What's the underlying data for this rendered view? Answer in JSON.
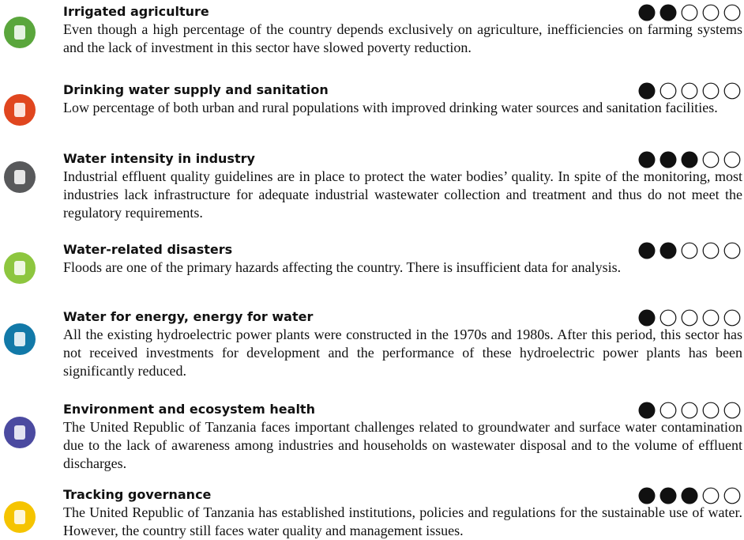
{
  "scale": 5,
  "items": [
    {
      "title": "Irrigated agriculture",
      "rating": 2,
      "text": "Even though a high percentage of the country depends exclusively on agriculture, inefficiencies on farming systems and the lack of investment in this sector have slowed poverty reduction."
    },
    {
      "title": "Drinking water supply and sanitation",
      "rating": 1,
      "text": "Low percentage of both urban and rural populations with improved drinking water sources and sanitation facilities."
    },
    {
      "title": "Water intensity in industry",
      "rating": 3,
      "text": "Industrial effluent quality guidelines are in place to protect the water bodies’ quality. In spite of the monitoring, most industries lack infrastructure for adequate industrial wastewater collection and treatment and thus do not meet the regulatory requirements."
    },
    {
      "title": "Water-related disasters",
      "rating": 2,
      "text": "Floods are one of the primary hazards affecting the country. There is insufficient data for analysis."
    },
    {
      "title": "Water for energy, energy for water",
      "rating": 1,
      "text": "All the existing hydroelectric power plants were constructed in the 1970s and 1980s. After this period, this sector has not received investments for development and the performance of these hydroelectric power plants has been significantly reduced."
    },
    {
      "title": "Environment and ecosystem health",
      "rating": 1,
      "text": "The United Republic of Tanzania faces important challenges related to groundwater and surface water contamination due to the lack of awareness among industries and households on wastewater disposal and to the volume of effluent discharges."
    },
    {
      "title": "Tracking governance",
      "rating": 3,
      "text": "The United Republic of Tanzania has established institutions, policies and regulations for the sustainable use of water. However, the country still faces water quality and management issues."
    }
  ]
}
